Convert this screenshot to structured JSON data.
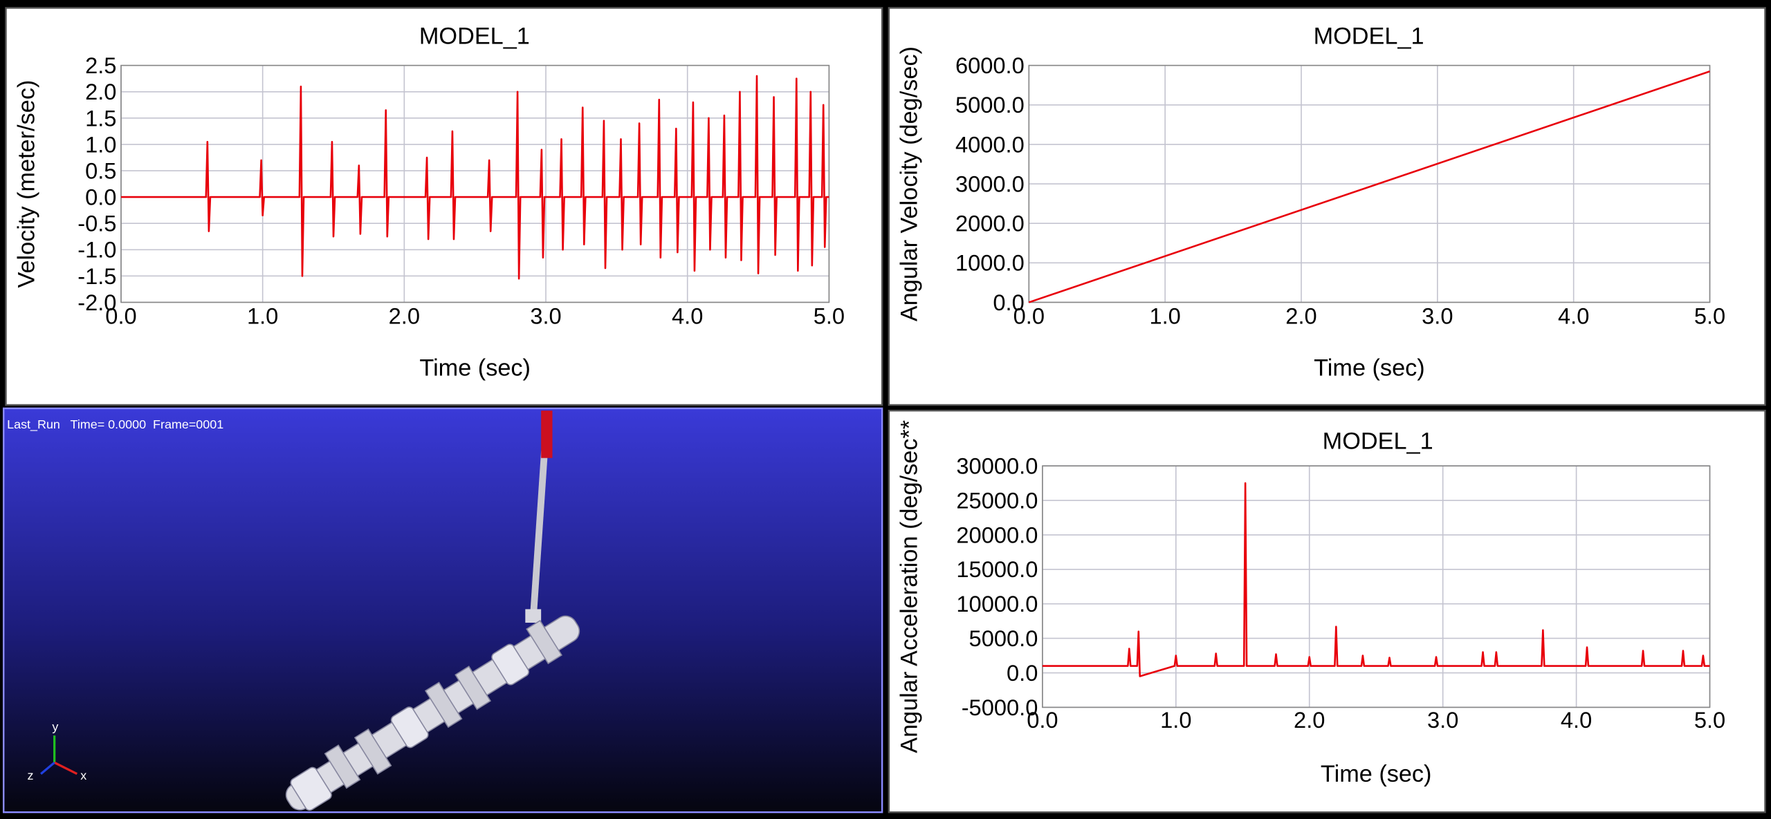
{
  "chart_data": [
    {
      "type": "line",
      "title": "MODEL_1",
      "xlabel": "Time (sec)",
      "ylabel": "Velocity (meter/sec)",
      "color": "#e8000b",
      "grid": true,
      "xlim": [
        0,
        5
      ],
      "ylim": [
        -2,
        2.5
      ],
      "xticks": [
        {
          "value": 0,
          "label": "0.0"
        },
        {
          "value": 1,
          "label": "1.0"
        },
        {
          "value": 2,
          "label": "2.0"
        },
        {
          "value": 3,
          "label": "3.0"
        },
        {
          "value": 4,
          "label": "4.0"
        },
        {
          "value": 5,
          "label": "5.0"
        }
      ],
      "yticks": [
        {
          "value": -2,
          "label": "-2.0"
        },
        -1.5,
        {
          "value": -1,
          "label": "-1.0"
        },
        -0.5,
        {
          "value": 0,
          "label": "0.0"
        },
        0.5,
        {
          "value": 1,
          "label": "1.0"
        },
        1.5,
        {
          "value": 2,
          "label": "2.0"
        },
        2.5
      ],
      "x": [
        0,
        0.6,
        0.61,
        0.62,
        0.63,
        0.98,
        0.99,
        1.0,
        1.01,
        1.26,
        1.27,
        1.28,
        1.29,
        1.48,
        1.49,
        1.5,
        1.51,
        1.67,
        1.68,
        1.69,
        1.7,
        1.86,
        1.87,
        1.88,
        1.89,
        2.15,
        2.16,
        2.17,
        2.18,
        2.33,
        2.34,
        2.35,
        2.36,
        2.59,
        2.6,
        2.61,
        2.62,
        2.79,
        2.8,
        2.81,
        2.82,
        2.96,
        2.97,
        2.98,
        2.99,
        3.1,
        3.11,
        3.12,
        3.13,
        3.25,
        3.26,
        3.27,
        3.28,
        3.4,
        3.41,
        3.42,
        3.43,
        3.52,
        3.53,
        3.54,
        3.55,
        3.65,
        3.66,
        3.67,
        3.68,
        3.79,
        3.8,
        3.81,
        3.82,
        3.91,
        3.92,
        3.93,
        3.94,
        4.03,
        4.04,
        4.05,
        4.06,
        4.14,
        4.15,
        4.16,
        4.17,
        4.25,
        4.26,
        4.27,
        4.28,
        4.36,
        4.37,
        4.38,
        4.39,
        4.48,
        4.49,
        4.5,
        4.51,
        4.6,
        4.61,
        4.62,
        4.63,
        4.76,
        4.77,
        4.78,
        4.79,
        4.86,
        4.87,
        4.88,
        4.89,
        4.95,
        4.96,
        4.97,
        4.98,
        5.0
      ],
      "values": [
        0,
        0,
        1.05,
        -0.65,
        0,
        0,
        0.7,
        -0.35,
        0,
        0,
        2.1,
        -1.5,
        0,
        0,
        1.05,
        -0.75,
        0,
        0,
        0.6,
        -0.7,
        0,
        0,
        1.65,
        -0.75,
        0,
        0,
        0.75,
        -0.8,
        0,
        0,
        1.25,
        -0.8,
        0,
        0,
        0.7,
        -0.65,
        0,
        0,
        2.0,
        -1.55,
        0,
        0,
        0.9,
        -1.15,
        0,
        0,
        1.1,
        -1.0,
        0,
        0,
        1.7,
        -0.9,
        0,
        0,
        1.45,
        -1.35,
        0,
        0,
        1.1,
        -1.0,
        0,
        0,
        1.4,
        -0.9,
        0,
        0,
        1.85,
        -1.15,
        0,
        0,
        1.3,
        -1.05,
        0,
        0,
        1.8,
        -1.4,
        0,
        0,
        1.5,
        -1.0,
        0,
        0,
        1.55,
        -1.15,
        0,
        0,
        2.0,
        -1.2,
        0,
        0,
        2.3,
        -1.45,
        0,
        0,
        1.9,
        -1.1,
        0,
        0,
        2.25,
        -1.4,
        0,
        0,
        2.0,
        -1.3,
        0,
        0,
        1.75,
        -0.95,
        0,
        0
      ]
    },
    {
      "type": "line",
      "title": "MODEL_1",
      "xlabel": "Time (sec)",
      "ylabel": "Angular Velocity (deg/sec)",
      "color": "#e8000b",
      "grid": true,
      "xlim": [
        0,
        5
      ],
      "ylim": [
        0,
        6000
      ],
      "xticks": [
        {
          "value": 0,
          "label": "0.0"
        },
        {
          "value": 1,
          "label": "1.0"
        },
        {
          "value": 2,
          "label": "2.0"
        },
        {
          "value": 3,
          "label": "3.0"
        },
        {
          "value": 4,
          "label": "4.0"
        },
        {
          "value": 5,
          "label": "5.0"
        }
      ],
      "yticks": [
        {
          "value": 0,
          "label": "0.0"
        },
        {
          "value": 1000,
          "label": "1000.0"
        },
        {
          "value": 2000,
          "label": "2000.0"
        },
        {
          "value": 3000,
          "label": "3000.0"
        },
        {
          "value": 4000,
          "label": "4000.0"
        },
        {
          "value": 5000,
          "label": "5000.0"
        },
        {
          "value": 6000,
          "label": "6000.0"
        }
      ],
      "x": [
        0,
        5
      ],
      "values": [
        0,
        5850
      ]
    },
    {
      "type": "line",
      "title": "MODEL_1",
      "xlabel": "Time (sec)",
      "ylabel": "Angular Acceleration (deg/sec**",
      "color": "#e8000b",
      "grid": true,
      "xlim": [
        0,
        5
      ],
      "ylim": [
        -5000,
        30000
      ],
      "xticks": [
        {
          "value": 0,
          "label": "0.0"
        },
        {
          "value": 1,
          "label": "1.0"
        },
        {
          "value": 2,
          "label": "2.0"
        },
        {
          "value": 3,
          "label": "3.0"
        },
        {
          "value": 4,
          "label": "4.0"
        },
        {
          "value": 5,
          "label": "5.0"
        }
      ],
      "yticks": [
        {
          "value": -5000,
          "label": "-5000.0"
        },
        {
          "value": 0,
          "label": "0.0"
        },
        {
          "value": 5000,
          "label": "5000.0"
        },
        {
          "value": 10000,
          "label": "10000.0"
        },
        {
          "value": 15000,
          "label": "15000.0"
        },
        {
          "value": 20000,
          "label": "20000.0"
        },
        {
          "value": 25000,
          "label": "25000.0"
        },
        {
          "value": 30000,
          "label": "30000.0"
        }
      ],
      "x": [
        0,
        0.64,
        0.65,
        0.66,
        0.71,
        0.72,
        0.73,
        0.99,
        1.0,
        1.01,
        1.29,
        1.3,
        1.31,
        1.51,
        1.52,
        1.53,
        1.74,
        1.75,
        1.76,
        1.99,
        2.0,
        2.01,
        2.19,
        2.2,
        2.21,
        2.39,
        2.4,
        2.41,
        2.59,
        2.6,
        2.61,
        2.94,
        2.95,
        2.96,
        3.29,
        3.3,
        3.31,
        3.39,
        3.4,
        3.41,
        3.74,
        3.75,
        3.76,
        4.07,
        4.08,
        4.09,
        4.49,
        4.5,
        4.51,
        4.79,
        4.8,
        4.81,
        4.94,
        4.95,
        4.96,
        5.0
      ],
      "values": [
        1000,
        1000,
        3500,
        1000,
        1000,
        6000,
        -500,
        1000,
        2500,
        1000,
        1000,
        2800,
        1000,
        1000,
        27500,
        1000,
        1000,
        2700,
        1000,
        1000,
        2300,
        1000,
        1000,
        6700,
        1000,
        1000,
        2500,
        1000,
        1000,
        2200,
        1000,
        1000,
        2300,
        1000,
        1000,
        3000,
        1000,
        1000,
        3000,
        1000,
        1000,
        6200,
        1000,
        1000,
        3700,
        1000,
        1000,
        3200,
        1000,
        1000,
        3200,
        1000,
        1000,
        2500,
        1000,
        1000
      ]
    }
  ],
  "viewport": {
    "status": "Last_Run   Time= 0.0000  Frame=0001",
    "axes": {
      "x": "x",
      "y": "y",
      "z": "z"
    }
  }
}
